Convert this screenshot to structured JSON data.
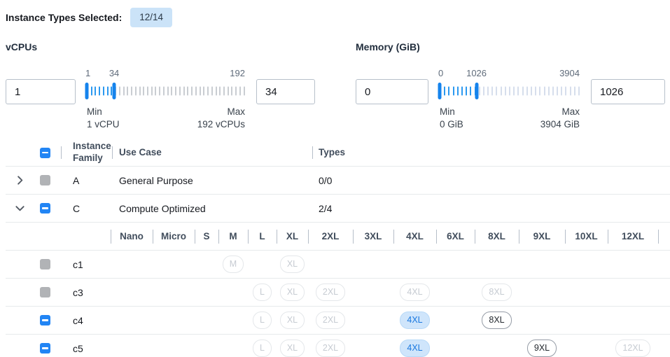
{
  "header": {
    "label": "Instance Types Selected:",
    "badge": "12/14"
  },
  "colors": {
    "accent_blue": "#2285f4",
    "badge_selected_bg": "#cfe5fb",
    "badge_selected_text": "#1b79e0",
    "count_badge_bg": "#cbe3f8"
  },
  "filters": {
    "vcpus": {
      "label": "vCPUs",
      "min_input": "1",
      "max_input": "34",
      "scale_labels": {
        "min": "1",
        "handle": "34",
        "max": "192"
      },
      "min_caption": [
        "Min",
        "1 vCPU"
      ],
      "max_caption": [
        "Max",
        "192 vCPUs"
      ],
      "range": {
        "min": 1,
        "max": 192,
        "low": 1,
        "high": 34
      },
      "tick_count": 40,
      "tick_active_color": "#2b99f0",
      "tick_inactive_color": "#c9cdd2"
    },
    "memory": {
      "label": "Memory (GiB)",
      "min_input": "0",
      "max_input": "1026",
      "scale_labels": {
        "min": "0",
        "handle": "1026",
        "max": "3904"
      },
      "min_caption": [
        "Min",
        "0 GiB"
      ],
      "max_caption": [
        "Max",
        "3904 GiB"
      ],
      "range": {
        "min": 0,
        "max": 3904,
        "low": 0,
        "high": 1026
      },
      "tick_count": 33,
      "tick_active_color": "#2b99f0",
      "tick_inactive_color": "#d6deec"
    }
  },
  "table": {
    "select_all_state": "indeterminate",
    "columns": {
      "family": "Instance Family",
      "use_case": "Use Case",
      "types": "Types"
    },
    "family_rows": [
      {
        "name": "A",
        "use_case": "General Purpose",
        "types": "0/0",
        "checkbox": "disabled",
        "expanded": false
      },
      {
        "name": "C",
        "use_case": "Compute Optimized",
        "types": "2/4",
        "checkbox": "indeterminate",
        "expanded": true
      }
    ],
    "size_columns": [
      "Nano",
      "Micro",
      "S",
      "M",
      "L",
      "XL",
      "2XL",
      "3XL",
      "4XL",
      "6XL",
      "8XL",
      "9XL",
      "10XL",
      "12XL"
    ],
    "type_rows": [
      {
        "name": "c1",
        "checkbox": "disabled",
        "badges": [
          {
            "size": "M",
            "state": "disabled"
          },
          {
            "size": "XL",
            "state": "disabled"
          }
        ]
      },
      {
        "name": "c3",
        "checkbox": "disabled",
        "badges": [
          {
            "size": "L",
            "state": "disabled"
          },
          {
            "size": "XL",
            "state": "disabled"
          },
          {
            "size": "2XL",
            "state": "disabled"
          },
          {
            "size": "4XL",
            "state": "disabled"
          },
          {
            "size": "8XL",
            "state": "disabled"
          }
        ]
      },
      {
        "name": "c4",
        "checkbox": "indeterminate",
        "badges": [
          {
            "size": "L",
            "state": "disabled"
          },
          {
            "size": "XL",
            "state": "disabled"
          },
          {
            "size": "2XL",
            "state": "disabled"
          },
          {
            "size": "4XL",
            "state": "selected"
          },
          {
            "size": "8XL",
            "state": "enabled"
          }
        ]
      },
      {
        "name": "c5",
        "checkbox": "indeterminate",
        "badges": [
          {
            "size": "L",
            "state": "disabled"
          },
          {
            "size": "XL",
            "state": "disabled"
          },
          {
            "size": "2XL",
            "state": "disabled"
          },
          {
            "size": "4XL",
            "state": "selected"
          },
          {
            "size": "9XL",
            "state": "enabled"
          },
          {
            "size": "12XL",
            "state": "disabled"
          }
        ]
      }
    ]
  }
}
